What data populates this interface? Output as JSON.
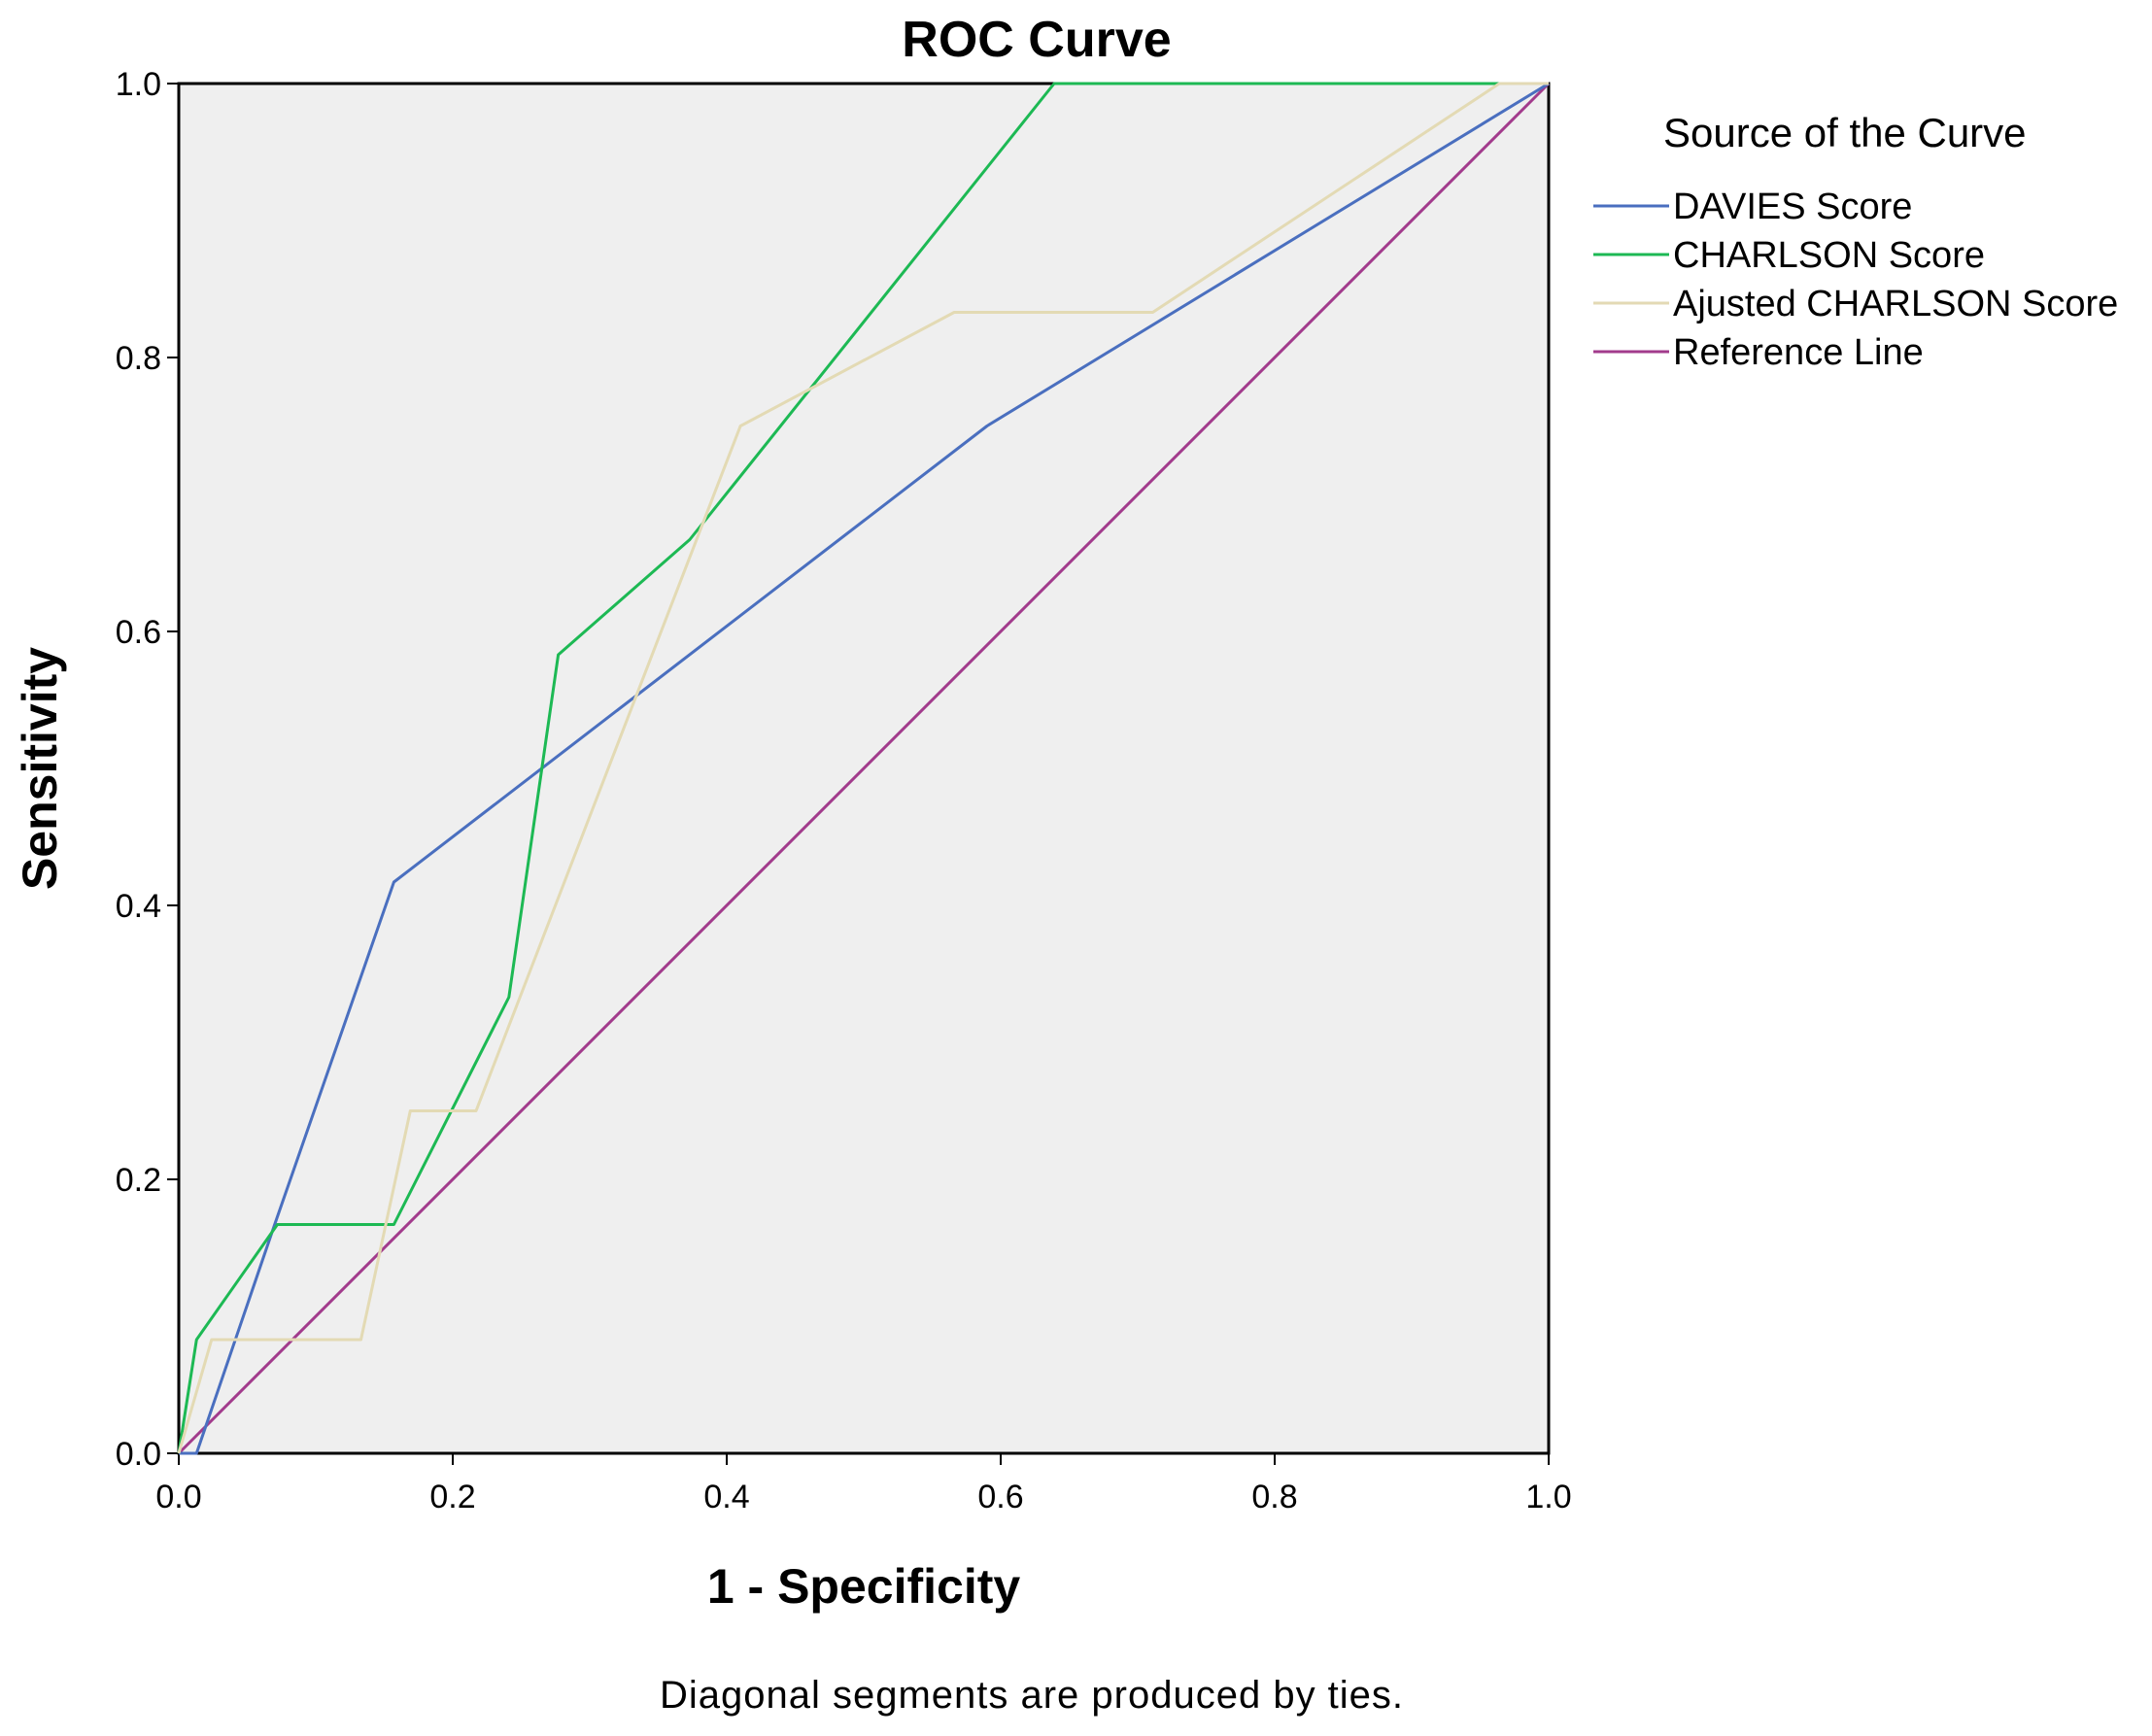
{
  "chart_data": {
    "type": "line",
    "title": "ROC Curve",
    "xlabel": "1 - Specificity",
    "ylabel": "Sensitivity",
    "xlim": [
      0.0,
      1.0
    ],
    "ylim": [
      0.0,
      1.0
    ],
    "x_ticks": [
      "0.0",
      "0.2",
      "0.4",
      "0.6",
      "0.8",
      "1.0"
    ],
    "y_ticks": [
      "0.0",
      "0.2",
      "0.4",
      "0.6",
      "0.8",
      "1.0"
    ],
    "legend_title": "Source of the Curve",
    "legend_position": "right",
    "plot_background": "#efefef",
    "footnote": "Diagonal segments are produced by ties.",
    "series": [
      {
        "name": "DAVIES Score",
        "color": "#4a6fbf",
        "points": [
          [
            0.0,
            0.0
          ],
          [
            0.013,
            0.0
          ],
          [
            0.07,
            0.167
          ],
          [
            0.157,
            0.417
          ],
          [
            0.59,
            0.75
          ],
          [
            1.0,
            1.0
          ]
        ]
      },
      {
        "name": "CHARLSON Score",
        "color": "#1db954",
        "points": [
          [
            0.0,
            0.0
          ],
          [
            0.013,
            0.083
          ],
          [
            0.072,
            0.167
          ],
          [
            0.157,
            0.167
          ],
          [
            0.241,
            0.333
          ],
          [
            0.277,
            0.583
          ],
          [
            0.373,
            0.667
          ],
          [
            0.639,
            1.0
          ],
          [
            1.0,
            1.0
          ]
        ]
      },
      {
        "name": "Ajusted CHARLSON Score",
        "color": "#e3dab4",
        "points": [
          [
            0.0,
            0.0
          ],
          [
            0.024,
            0.083
          ],
          [
            0.133,
            0.083
          ],
          [
            0.169,
            0.25
          ],
          [
            0.217,
            0.25
          ],
          [
            0.41,
            0.75
          ],
          [
            0.566,
            0.833
          ],
          [
            0.711,
            0.833
          ],
          [
            0.964,
            1.0
          ],
          [
            1.0,
            1.0
          ]
        ]
      },
      {
        "name": "Reference Line",
        "color": "#a23b8c",
        "points": [
          [
            0.0,
            0.0
          ],
          [
            1.0,
            1.0
          ]
        ]
      }
    ]
  }
}
